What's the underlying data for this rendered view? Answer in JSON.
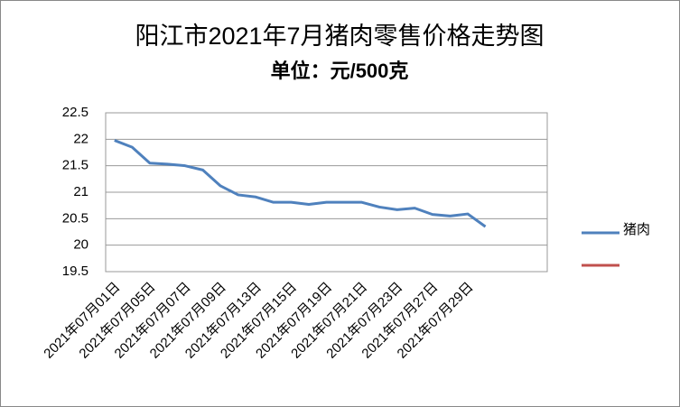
{
  "chart_data": {
    "type": "line",
    "title": "阳江市2021年7月猪肉零售价格走势图",
    "subtitle": "单位：元/500克",
    "categories": [
      "2021年07月01日",
      null,
      "2021年07月05日",
      null,
      "2021年07月07日",
      null,
      "2021年07月09日",
      null,
      "2021年07月13日",
      null,
      "2021年07月15日",
      null,
      "2021年07月19日",
      null,
      "2021年07月21日",
      null,
      "2021年07月23日",
      null,
      "2021年07月27日",
      null,
      "2021年07月29日",
      null,
      null,
      null,
      null
    ],
    "series": [
      {
        "name": "猪肉",
        "color": "#4f81bd",
        "values": [
          21.98,
          21.85,
          21.55,
          21.53,
          21.5,
          21.42,
          21.12,
          20.95,
          20.91,
          20.81,
          20.81,
          20.77,
          20.81,
          20.81,
          20.81,
          20.72,
          20.67,
          20.7,
          20.58,
          20.55,
          20.59,
          20.35,
          null,
          null,
          null
        ]
      },
      {
        "name": null,
        "color": "#c0504d",
        "values": [
          null,
          null,
          null,
          null,
          null,
          null,
          null,
          null,
          null,
          null,
          null,
          null,
          null,
          null,
          null,
          null,
          null,
          null,
          null,
          null,
          null,
          null,
          null,
          null,
          null
        ]
      }
    ],
    "ylim": [
      19.5,
      22.5
    ],
    "yticks": [
      19.5,
      20,
      20.5,
      21,
      21.5,
      22,
      22.5
    ],
    "grid": true
  }
}
